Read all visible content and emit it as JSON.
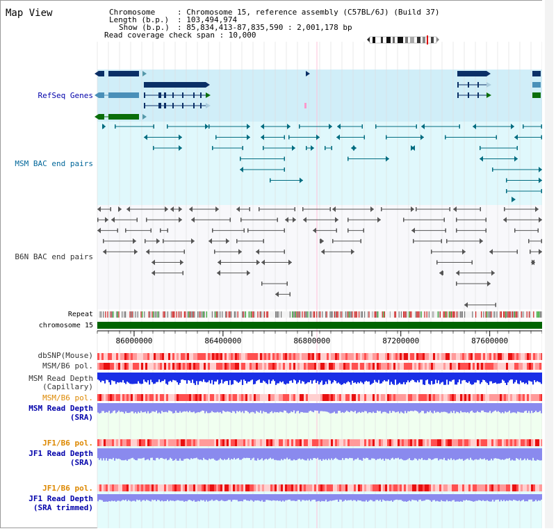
{
  "title": "Map View",
  "info": {
    "chromosome_key": "Chromosome",
    "chromosome_value": ": Chromosome 15, reference assembly (C57BL/6J) (Build 37)",
    "length_key": "Length (b.p.)",
    "length_value": ": 103,494,974",
    "show_key": "Show (b.p.)",
    "show_value": ": 85,834,413-87,835,590 : 2,001,178 bp",
    "coverage_line": "Read coverage check span : 10,000"
  },
  "tracks": {
    "refseq": "RefSeq Genes",
    "msm_bac": "MSM BAC end pairs",
    "b6n_bac": "B6N BAC end pairs",
    "repeat": "Repeat",
    "chromosome": "chromosome 15",
    "dbsnp": "dbSNP(Mouse)",
    "msm_pol_1": "MSM/B6 pol.",
    "msm_depth_cap_1": "MSM Read Depth",
    "msm_depth_cap_2": "(Capillary)",
    "msm_pol_2": "MSM/B6 pol.",
    "msm_depth_sra_1": "MSM Read Depth",
    "msm_depth_sra_2": "(SRA)",
    "jf1_pol_1": "JF1/B6 pol.",
    "jf1_depth_sra_1": "JF1 Read Depth",
    "jf1_depth_sra_2": "(SRA)",
    "jf1_pol_2": "JF1/B6 pol.",
    "jf1_depth_trim_1": "JF1 Read Depth",
    "jf1_depth_trim_2": "(SRA trimmed)"
  },
  "axis": {
    "start": 85834413,
    "end": 87835590,
    "ticks": [
      {
        "pos": 86000000,
        "label": "86000000"
      },
      {
        "pos": 86400000,
        "label": "86400000"
      },
      {
        "pos": 86800000,
        "label": "86800000"
      },
      {
        "pos": 87200000,
        "label": "87200000"
      },
      {
        "pos": 87600000,
        "label": "87600000"
      }
    ]
  },
  "colors": {
    "label_default": "#000000",
    "label_refseq": "#0000aa",
    "label_msm_bac": "#006699",
    "label_b6n_bac": "#333333",
    "label_pol_orange": "#dd8800",
    "label_depth_blue": "#0000aa",
    "gene_navy": "#0b2f66",
    "gene_teal": "#4a90b8",
    "gene_green": "#0a6e0a",
    "msm_bac": "#006c80",
    "b6n_bac": "#555555",
    "chromosome": "#006400",
    "depth_capillary": "#1a2ee6",
    "depth_sra": "#8a8aee",
    "refseq_bg": "#d0eef8",
    "msm_bg": "#e0f8fc",
    "sra_bg": "#f0fff0",
    "jf1_bg": "#e4fcfc"
  }
}
